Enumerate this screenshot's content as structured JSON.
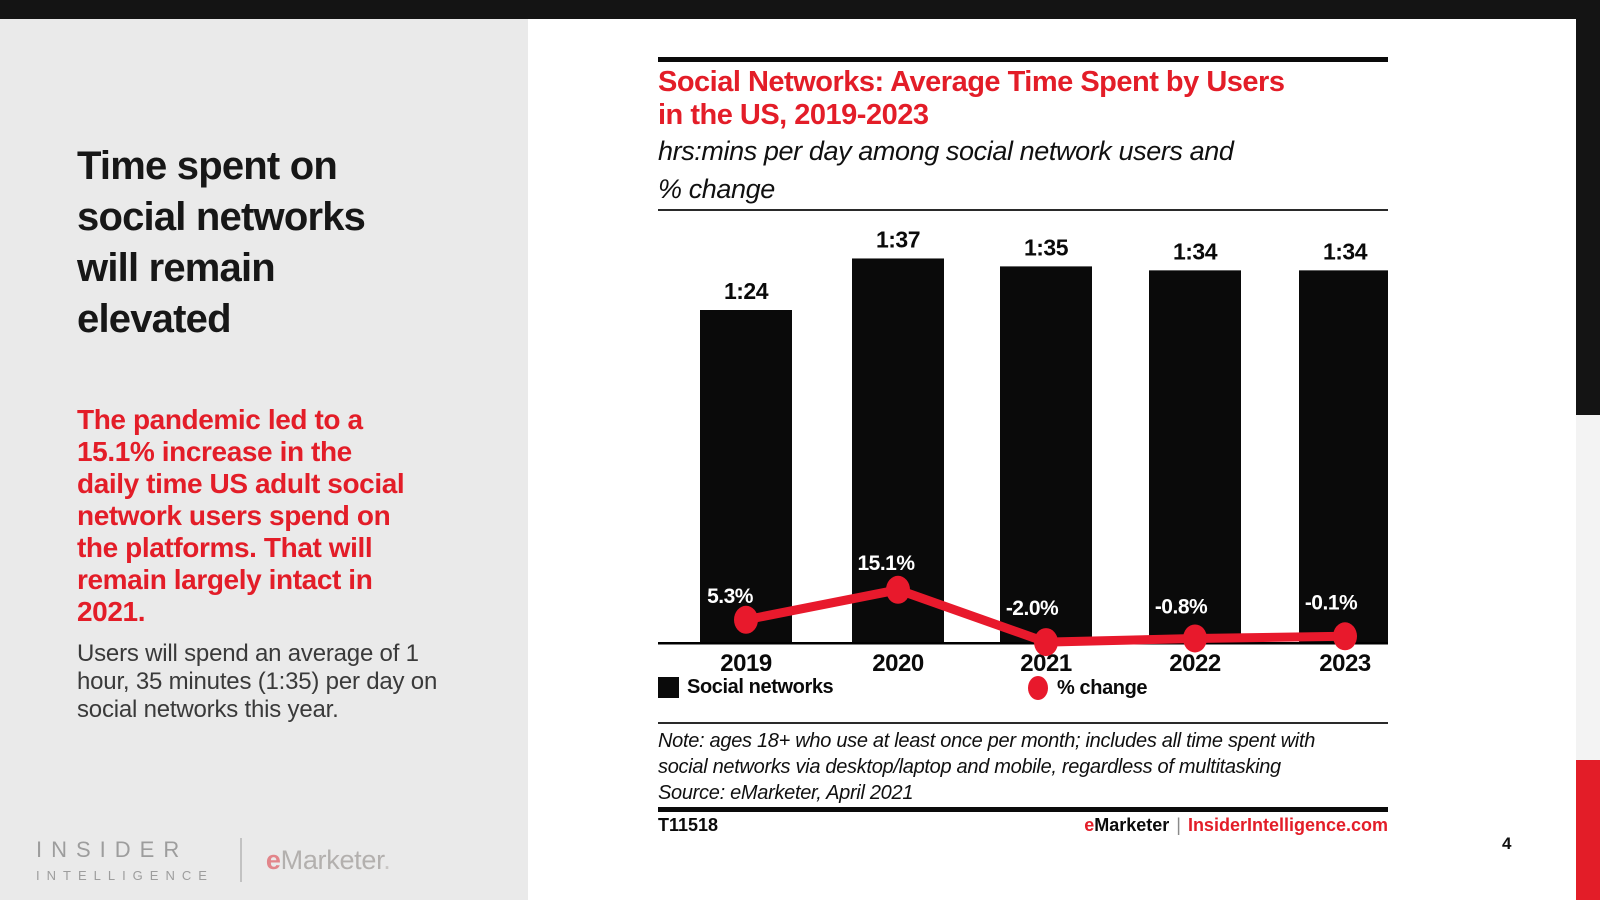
{
  "slide": {
    "page_number": "4"
  },
  "sidebar": {
    "title_lines": [
      "Time spent on",
      "social networks",
      "will remain",
      "elevated"
    ],
    "highlight_lines": [
      "The pandemic led to a",
      "15.1% increase in the",
      "daily time US adult social",
      "network users spend on",
      "the platforms. That will",
      "remain largely intact in",
      "2021."
    ],
    "body_lines": [
      "Users will spend an average of 1",
      "hour, 35 minutes (1:35) per day on",
      "social networks this year."
    ],
    "logo": {
      "line1": "INSIDER",
      "line2": "INTELLIGENCE",
      "emarketer_e": "e",
      "emarketer_rest": "Marketer",
      "emarketer_mark": "."
    }
  },
  "chart": {
    "title_lines": [
      "Social Networks: Average Time Spent by Users",
      "in the US, 2019-2023"
    ],
    "subtitle_lines": [
      "hrs:mins per day among social network users and",
      "% change"
    ],
    "note_lines": [
      "Note: ages 18+ who use at least once per month; includes all time spent with",
      "social networks via desktop/laptop and mobile, regardless of multitasking",
      "Source: eMarketer, April 2021"
    ],
    "chart_id": "T11518",
    "footer": {
      "emarketer_e": "e",
      "emarketer_rest": "Marketer",
      "separator": "|",
      "site": "InsiderIntelligence.com"
    }
  },
  "chart_data": {
    "type": "combo",
    "title": "Social Networks: Average Time Spent by Users in the US, 2019-2023",
    "subtitle": "hrs:mins per day among social network users and % change",
    "categories": [
      "2019",
      "2020",
      "2021",
      "2022",
      "2023"
    ],
    "series": [
      {
        "name": "Social networks",
        "type": "bar",
        "unit": "hrs:mins per day",
        "labels": [
          "1:24",
          "1:37",
          "1:35",
          "1:34",
          "1:34"
        ],
        "values_minutes": [
          84,
          97,
          95,
          94,
          94
        ],
        "color": "#0a0a0a"
      },
      {
        "name": "% change",
        "type": "line",
        "unit": "% change",
        "labels": [
          "5.3%",
          "15.1%",
          "-2.0%",
          "-0.8%",
          "-0.1%"
        ],
        "values_percent": [
          5.3,
          15.1,
          -2.0,
          -0.8,
          -0.1
        ],
        "color": "#e8192c"
      }
    ],
    "legend": [
      {
        "label": "Social networks",
        "swatch": "square",
        "color": "#0a0a0a"
      },
      {
        "label": "% change",
        "swatch": "circle",
        "color": "#e8192c"
      }
    ],
    "axes": {
      "x_ticks": [
        "2019",
        "2020",
        "2021",
        "2022",
        "2023"
      ],
      "y_axis_visible": false,
      "gridlines": false,
      "bar_baseline_minutes": 0
    }
  }
}
